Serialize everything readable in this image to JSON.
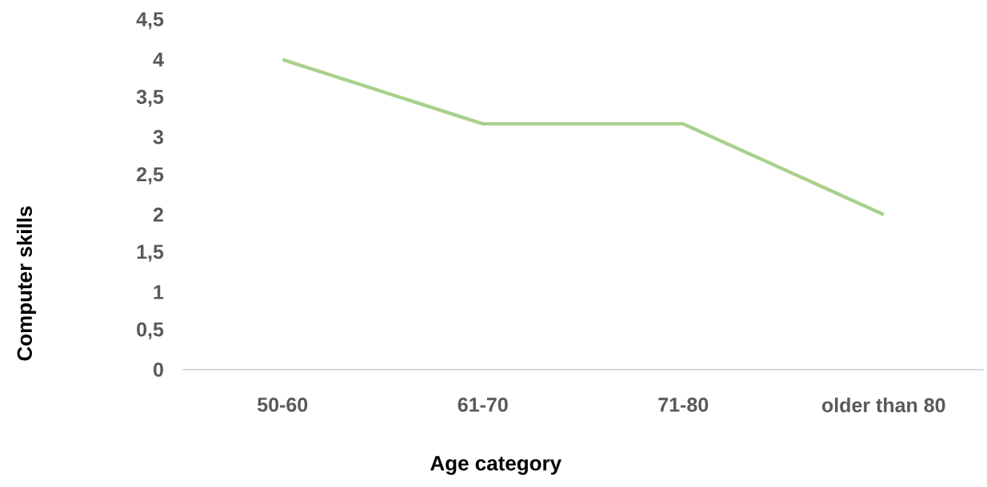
{
  "chart_data": {
    "type": "line",
    "xlabel": "Age category",
    "ylabel": "Computer skills",
    "categories": [
      "50-60",
      "61-70",
      "71-80",
      "older than 80"
    ],
    "values": [
      4,
      3.17,
      3.17,
      2
    ],
    "color": "#a9d18e",
    "ylim": [
      0,
      4.5
    ],
    "yticks": [
      0,
      {
        "value": 0.5,
        "label": "0,5"
      },
      1,
      {
        "value": 1.5,
        "label": "1,5"
      },
      2,
      {
        "value": 2.5,
        "label": "2,5"
      },
      3,
      {
        "value": 3.5,
        "label": "3,5"
      },
      4,
      {
        "value": 4.5,
        "label": "4,5"
      }
    ]
  }
}
